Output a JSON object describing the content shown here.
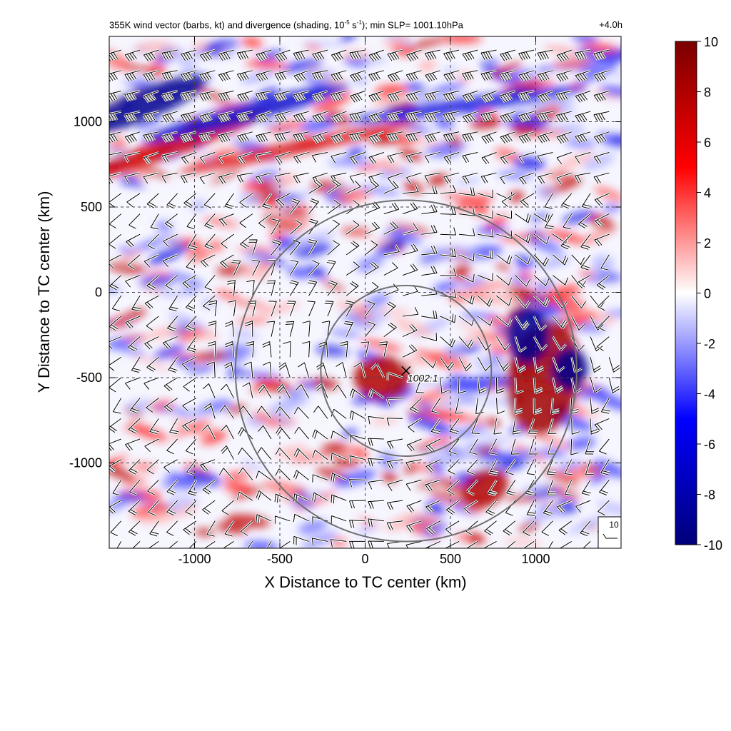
{
  "chart_data": {
    "type": "heatmap",
    "title_parts": {
      "a": "355K wind vector (barbs, kt) and divergence (shading, 10",
      "exp1": "-5",
      "b": " s",
      "exp2": "-1",
      "c": "); min SLP= 1001.10hPa"
    },
    "time_label": "+4.0h",
    "xlabel": "X Distance to TC center (km)",
    "ylabel": "Y Distance to TC center (km)",
    "xlim": [
      -1500,
      1500
    ],
    "ylim": [
      -1500,
      1500
    ],
    "xticks": [
      -1000,
      -500,
      0,
      500,
      1000
    ],
    "yticks": [
      -1000,
      -500,
      0,
      500,
      1000
    ],
    "xtick_labels": [
      "-1000",
      "-500",
      "0",
      "500",
      "1000"
    ],
    "ytick_labels": [
      "-1000",
      "-500",
      "0",
      "500",
      "1000"
    ],
    "grid": "dashed",
    "colorbar": {
      "range": [
        -10,
        10
      ],
      "ticks": [
        10,
        8,
        6,
        4,
        2,
        0,
        -2,
        -4,
        -6,
        -8,
        -10
      ],
      "tick_labels": [
        "10",
        "8",
        "6",
        "4",
        "2",
        "0",
        "-2",
        "-4",
        "-6",
        "-8",
        "-10"
      ],
      "colors": [
        "#00007a",
        "#0000ff",
        "#ffffff",
        "#ff0000",
        "#7a0000"
      ]
    },
    "range_rings": [
      {
        "center_x": 240,
        "center_y": -460,
        "radius": 500
      },
      {
        "center_x": 240,
        "center_y": -460,
        "radius": 1000
      }
    ],
    "center_marker": {
      "x": 240,
      "y": -460,
      "label": "1002.1"
    },
    "barb_reference": {
      "label": "10"
    },
    "colors": {
      "ring": "#707070",
      "grid": "#444444"
    }
  }
}
